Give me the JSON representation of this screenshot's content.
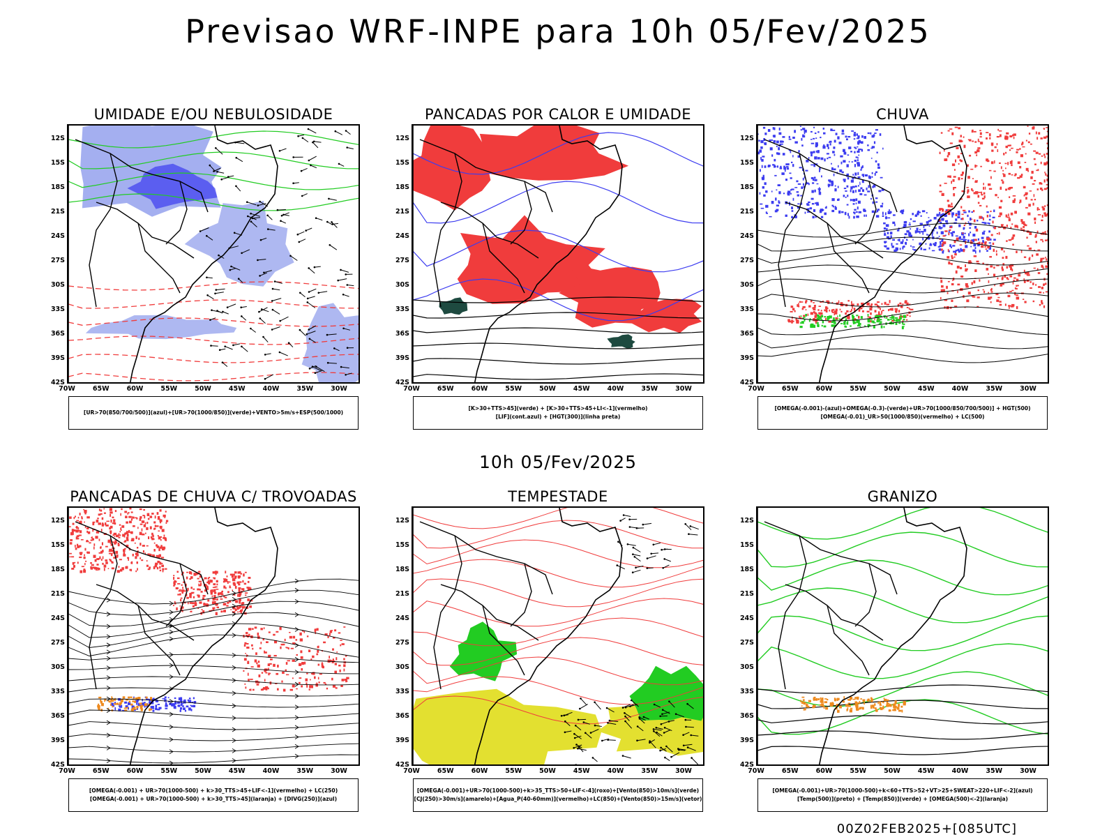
{
  "title": "Previsao WRF-INPE  para 10h 05/Fev/2025",
  "subtitle": "10h 05/Fev/2025",
  "footer": "00Z02FEB2025+[085UTC]",
  "axes": {
    "lat_labels": [
      "12S",
      "15S",
      "18S",
      "21S",
      "24S",
      "27S",
      "30S",
      "33S",
      "36S",
      "39S",
      "42S"
    ],
    "lon_labels": [
      "70W",
      "65W",
      "60W",
      "55W",
      "50W",
      "45W",
      "40W",
      "35W",
      "30W"
    ]
  },
  "colors": {
    "red": "#f03c3c",
    "green": "#22cc22",
    "blue": "#3c3cf0",
    "lightblue": "#9aa6ee",
    "yellow": "#e3e030",
    "orange": "#ee8a1e",
    "darkteal": "#1e4a40"
  },
  "panels": [
    {
      "id": "umidade",
      "title": "UMIDADE E/OU NEBULOSIDADE",
      "legend1": "[UR>70(850/700/500)](azul)+[UR>70(1000/850)](verde)+VENTO>5m/s+ESP(500/1000)",
      "legend2": ""
    },
    {
      "id": "pancadas-calor",
      "title": "PANCADAS POR CALOR E UMIDADE",
      "legend1": "[K>30+TTS>45](verde) + [K>30+TTS>45+LI<-1](vermelho)",
      "legend2": "[LIF](cont.azul) + [HGT(300)](linha preta)"
    },
    {
      "id": "chuva",
      "title": "CHUVA",
      "legend1": "[OMEGA(-0.001)-(azul)+OMEGA(-0.3)-(verde)+UR>70(1000/850/700/500)] + HGT(500)",
      "legend2": "[OMEGA(-0.01)_UR>50(1000/850)(vermelho) + LC(500)"
    },
    {
      "id": "trovoadas",
      "title": "PANCADAS DE CHUVA C/ TROVOADAS",
      "legend1": "[OMEGA(-0.001) + UR>70(1000-500) + k>30_TTS>45+LIF<-1](vermelho) + LC(250)",
      "legend2": "[OMEGA(-0.001) + UR>70(1000-500) + k>30_TTS>45](laranja) + [DIVG(250)](azul)"
    },
    {
      "id": "tempestade",
      "title": "TEMPESTADE",
      "legend1": "[OMEGA(-0.001)+UR>70(1000-500)+k>35_TTS>50+LIF<-4](roxo)+[Vento(850)>10m/s](verde)",
      "legend2": "[CJ(250)>30m/s](amarelo)+[Agua_P(40-60mm)](vermelho)+LC(850)+[Vento(850)>15m/s](vetor)"
    },
    {
      "id": "granizo",
      "title": "GRANIZO",
      "legend1": "[OMEGA(-0.001)+UR>70(1000-500)+k<60+TTS>52+VT>25+SWEAT>220+LIF<-2](azul)",
      "legend2": "[Temp(500)](preto) + [Temp(850)](verde) + [OMEGA(500)<-2](laranja)"
    }
  ]
}
